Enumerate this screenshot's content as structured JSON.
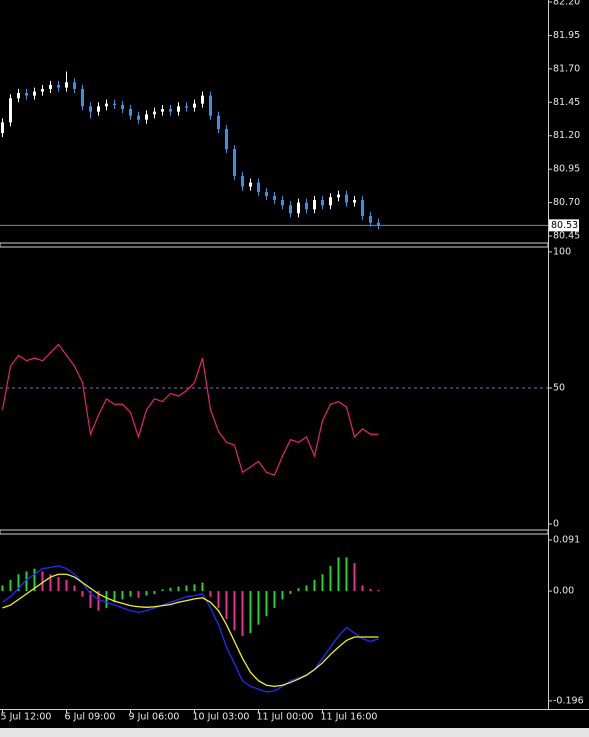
{
  "chart_data": [
    {
      "type": "candlestick",
      "up_color": "#ffffff",
      "down_color": "#3d8fe0",
      "open": [
        81.22,
        81.3,
        81.48,
        81.52,
        81.5,
        81.53,
        81.55,
        81.58,
        81.56,
        81.6,
        81.55,
        81.42,
        81.38,
        81.42,
        81.44,
        81.43,
        81.4,
        81.35,
        81.32,
        81.36,
        81.38,
        81.4,
        81.38,
        81.42,
        81.41,
        81.44,
        81.5,
        81.35,
        81.25,
        81.1,
        80.9,
        80.82,
        80.85,
        80.78,
        80.75,
        80.72,
        80.68,
        80.62,
        80.7,
        80.65,
        80.72,
        80.68,
        80.74,
        80.76,
        80.7,
        80.72,
        80.6,
        80.55
      ],
      "high": [
        81.33,
        81.51,
        81.55,
        81.55,
        81.56,
        81.58,
        81.61,
        81.61,
        81.68,
        81.63,
        81.58,
        81.45,
        81.45,
        81.47,
        81.47,
        81.46,
        81.43,
        81.38,
        81.39,
        81.41,
        81.43,
        81.43,
        81.45,
        81.45,
        81.47,
        81.53,
        81.53,
        81.38,
        81.28,
        81.13,
        80.93,
        80.88,
        80.88,
        80.81,
        80.78,
        80.75,
        80.71,
        80.73,
        80.73,
        80.75,
        80.75,
        80.77,
        80.79,
        80.79,
        80.75,
        80.75,
        80.63,
        80.58
      ],
      "low": [
        81.19,
        81.27,
        81.45,
        81.47,
        81.47,
        81.5,
        81.52,
        81.53,
        81.53,
        81.52,
        81.39,
        81.33,
        81.35,
        81.39,
        81.4,
        81.37,
        81.32,
        81.29,
        81.29,
        81.33,
        81.35,
        81.35,
        81.35,
        81.38,
        81.38,
        81.41,
        81.32,
        81.22,
        81.07,
        80.87,
        80.79,
        80.79,
        80.75,
        80.72,
        80.69,
        80.65,
        80.59,
        80.59,
        80.62,
        80.62,
        80.65,
        80.65,
        80.71,
        80.67,
        80.67,
        80.57,
        80.52,
        80.5
      ],
      "close": [
        81.3,
        81.48,
        81.52,
        81.5,
        81.53,
        81.55,
        81.58,
        81.56,
        81.6,
        81.55,
        81.42,
        81.38,
        81.42,
        81.44,
        81.43,
        81.4,
        81.35,
        81.32,
        81.36,
        81.38,
        81.4,
        81.38,
        81.42,
        81.41,
        81.44,
        81.5,
        81.35,
        81.25,
        81.1,
        80.9,
        80.82,
        80.85,
        80.78,
        80.75,
        80.72,
        80.68,
        80.62,
        80.7,
        80.65,
        80.72,
        80.68,
        80.74,
        80.76,
        80.7,
        80.72,
        80.6,
        80.55,
        80.53
      ],
      "last_price": 80.53,
      "last_price_color": "#6f86b8",
      "ylim": [
        80.398,
        82.215
      ],
      "yticks": [
        {
          "value": 82.2,
          "label": "82.20"
        },
        {
          "value": 81.95,
          "label": "81.95"
        },
        {
          "value": 81.7,
          "label": "81.70"
        },
        {
          "value": 81.45,
          "label": "81.45"
        },
        {
          "value": 81.2,
          "label": "81.20"
        },
        {
          "value": 80.95,
          "label": "80.95"
        },
        {
          "value": 80.7,
          "label": "80.70"
        },
        {
          "value": 80.45,
          "label": "80.45"
        }
      ]
    },
    {
      "type": "line",
      "color": "#e8246e",
      "values": [
        42,
        58,
        62,
        60,
        61,
        60,
        63,
        66,
        62,
        58,
        52,
        33,
        40,
        46,
        44,
        44,
        41,
        32,
        42,
        46,
        45,
        48,
        47,
        49,
        52,
        61,
        42,
        34,
        30,
        29,
        19,
        21,
        23,
        19,
        18,
        25,
        31,
        30,
        32,
        25,
        38,
        44,
        45,
        43,
        32,
        35,
        33,
        33
      ],
      "level": 50,
      "level_color": "#8a5fb0",
      "ylim": [
        -2.2,
        101.8
      ],
      "yticks": [
        0,
        50,
        100
      ]
    },
    {
      "type": "histogram_lines",
      "up_color": "#2fd02f",
      "down_color": "#e8348a",
      "values": [
        0.01,
        0.02,
        0.03,
        0.035,
        0.04,
        0.035,
        0.03,
        0.025,
        0.02,
        0.01,
        -0.01,
        -0.03,
        -0.035,
        -0.03,
        -0.02,
        -0.015,
        -0.01,
        -0.012,
        -0.008,
        -0.005,
        0.003,
        0.006,
        0.008,
        0.01,
        0.012,
        0.015,
        -0.01,
        -0.03,
        -0.05,
        -0.07,
        -0.08,
        -0.075,
        -0.06,
        -0.045,
        -0.03,
        -0.015,
        -0.005,
        0.005,
        0.01,
        0.02,
        0.03,
        0.045,
        0.06,
        0.06,
        0.05,
        0.01,
        0.004,
        0.002
      ],
      "lines": [
        {
          "color": "#1e2cff",
          "values": [
            -0.02,
            -0.01,
            0.005,
            0.02,
            0.03,
            0.04,
            0.042,
            0.045,
            0.04,
            0.03,
            0.015,
            -0.005,
            -0.015,
            -0.02,
            -0.025,
            -0.03,
            -0.035,
            -0.038,
            -0.035,
            -0.03,
            -0.025,
            -0.02,
            -0.015,
            -0.01,
            -0.008,
            -0.005,
            -0.03,
            -0.06,
            -0.1,
            -0.13,
            -0.16,
            -0.17,
            -0.175,
            -0.18,
            -0.178,
            -0.17,
            -0.16,
            -0.155,
            -0.15,
            -0.14,
            -0.12,
            -0.1,
            -0.08,
            -0.065,
            -0.075,
            -0.085,
            -0.09,
            -0.085
          ]
        },
        {
          "color": "#f2f21e",
          "values": [
            -0.03,
            -0.025,
            -0.015,
            -0.005,
            0.005,
            0.015,
            0.025,
            0.03,
            0.03,
            0.025,
            0.015,
            0.005,
            -0.005,
            -0.012,
            -0.018,
            -0.022,
            -0.026,
            -0.028,
            -0.029,
            -0.028,
            -0.026,
            -0.024,
            -0.02,
            -0.017,
            -0.014,
            -0.012,
            -0.02,
            -0.035,
            -0.06,
            -0.09,
            -0.12,
            -0.145,
            -0.16,
            -0.168,
            -0.17,
            -0.168,
            -0.163,
            -0.157,
            -0.15,
            -0.14,
            -0.128,
            -0.113,
            -0.1,
            -0.088,
            -0.082,
            -0.082,
            -0.082,
            -0.082
          ]
        }
      ],
      "ylim": [
        -0.2104,
        0.1018
      ],
      "yticks": [
        {
          "value": 0.091,
          "label": "0.091"
        },
        {
          "value": 0,
          "label": "0.00"
        },
        {
          "value": -0.196,
          "label": "-0.196"
        }
      ],
      "categories": [
        "5 Jul 12:00",
        null,
        null,
        null,
        null,
        null,
        null,
        null,
        "6 Jul 09:00",
        null,
        null,
        null,
        null,
        null,
        null,
        null,
        "9 Jul 06:00",
        null,
        null,
        null,
        null,
        null,
        null,
        null,
        "10 Jul 03:00",
        null,
        null,
        null,
        null,
        null,
        null,
        null,
        "11 Jul 00:00",
        null,
        null,
        null,
        null,
        null,
        null,
        null,
        "11 Jul 16:00",
        null,
        null,
        null,
        null,
        null,
        null,
        null
      ]
    }
  ]
}
